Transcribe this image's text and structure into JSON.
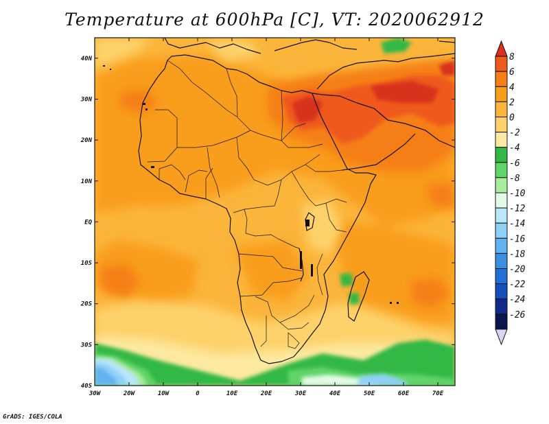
{
  "title": "Temperature at 600hPa [C], VT: 2020062912",
  "footer": "GrADS: IGES/COLA",
  "map": {
    "variable": "Temperature",
    "level": "600hPa",
    "units": "C",
    "valid_time": "2020062912",
    "lon_range": [
      -30,
      75
    ],
    "lat_range": [
      -40,
      45
    ],
    "lon_ticks": [
      "30W",
      "20W",
      "10W",
      "0",
      "10E",
      "20E",
      "30E",
      "40E",
      "50E",
      "60E",
      "70E"
    ],
    "lat_ticks": [
      "40N",
      "30N",
      "20N",
      "10N",
      "EQ",
      "10S",
      "20S",
      "30S",
      "40S"
    ]
  },
  "colorbar": {
    "labels": [
      "8",
      "6",
      "4",
      "2",
      "0",
      "-2",
      "-4",
      "-6",
      "-8",
      "-10",
      "-12",
      "-14",
      "-16",
      "-18",
      "-20",
      "-22",
      "-24",
      "-26"
    ],
    "colors": [
      "#d7301f",
      "#ef5a1e",
      "#f57f14",
      "#f99d1c",
      "#fbb53b",
      "#fdd26b",
      "#fde9a0",
      "#33b845",
      "#61d467",
      "#a9ec9e",
      "#e3fbe6",
      "#b9e6f9",
      "#8fd0f6",
      "#61b2f0",
      "#3a90e3",
      "#206ed8",
      "#1450bd",
      "#0f2a8a",
      "#0a1550",
      "#d9d4f2"
    ]
  }
}
